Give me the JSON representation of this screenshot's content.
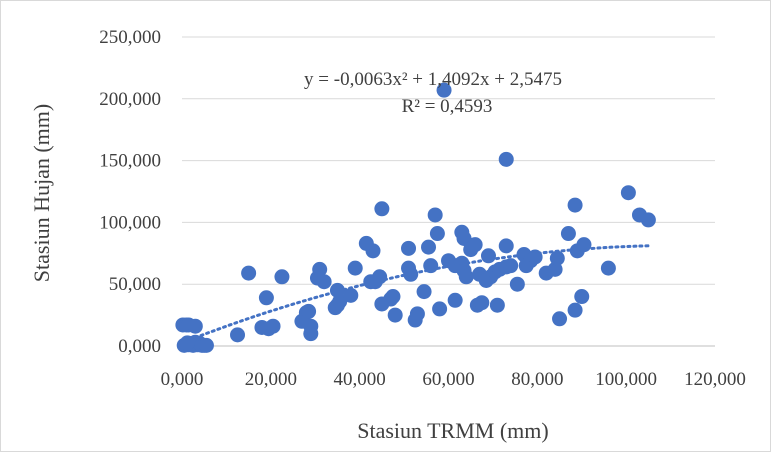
{
  "chart_data": {
    "type": "scatter",
    "title": "",
    "xlabel": "Stasiun TRMM (mm)",
    "ylabel": "Stasiun Hujan (mm)",
    "xlim": [
      0,
      120
    ],
    "ylim": [
      0,
      250
    ],
    "x_ticks": [
      "0,000",
      "20,000",
      "40,000",
      "60,000",
      "80,000",
      "100,000",
      "120,000"
    ],
    "y_ticks": [
      "0,000",
      "50,000",
      "100,000",
      "150,000",
      "200,000",
      "250,000"
    ],
    "x_tick_values": [
      0,
      20,
      40,
      60,
      80,
      100,
      120
    ],
    "y_tick_values": [
      0,
      50,
      100,
      150,
      200,
      250
    ],
    "grid": "horizontal",
    "legend": "none",
    "marker_color": "#4472c4",
    "trend_color": "#4472c4",
    "trendline": {
      "type": "polynomial",
      "order": 2,
      "coefficients": [
        -0.0063,
        1.4092,
        2.5475
      ],
      "x_range": [
        0.5,
        105
      ],
      "equation_text": "y = -0,0063x² + 1,4092x + 2,5475",
      "r2_text": "R² = 0,4593"
    },
    "series": [
      {
        "points": [
          [
            0.2,
            17
          ],
          [
            1,
            17
          ],
          [
            1.5,
            17
          ],
          [
            3,
            16
          ],
          [
            0.5,
            0.5
          ],
          [
            1.5,
            1
          ],
          [
            2,
            2
          ],
          [
            2.5,
            0.5
          ],
          [
            3,
            3
          ],
          [
            3.5,
            1
          ],
          [
            4,
            2
          ],
          [
            4.5,
            0.5
          ],
          [
            5,
            0.5
          ],
          [
            5.5,
            0.5
          ],
          [
            1.2,
            2.5
          ],
          [
            12.5,
            9
          ],
          [
            15,
            59
          ],
          [
            18,
            15
          ],
          [
            19,
            39
          ],
          [
            19.5,
            14
          ],
          [
            20.5,
            16
          ],
          [
            22.5,
            56
          ],
          [
            27,
            20
          ],
          [
            28,
            27
          ],
          [
            28.5,
            28
          ],
          [
            29,
            16
          ],
          [
            29,
            10
          ],
          [
            30.5,
            55
          ],
          [
            31,
            62
          ],
          [
            32,
            52
          ],
          [
            34.5,
            31
          ],
          [
            35,
            33
          ],
          [
            35,
            45
          ],
          [
            35.5,
            36
          ],
          [
            38,
            41
          ],
          [
            39,
            63
          ],
          [
            41.5,
            83
          ],
          [
            42.5,
            52
          ],
          [
            43,
            77
          ],
          [
            43.5,
            52
          ],
          [
            44.5,
            56
          ],
          [
            45,
            111
          ],
          [
            45,
            34
          ],
          [
            47,
            38
          ],
          [
            47.5,
            40
          ],
          [
            48,
            25
          ],
          [
            51,
            79
          ],
          [
            51,
            63
          ],
          [
            51.5,
            58
          ],
          [
            52.5,
            21
          ],
          [
            53,
            26
          ],
          [
            54.5,
            44
          ],
          [
            55.5,
            80
          ],
          [
            56,
            65
          ],
          [
            57,
            106
          ],
          [
            57.5,
            91
          ],
          [
            58,
            30
          ],
          [
            59,
            207
          ],
          [
            60,
            69
          ],
          [
            61.5,
            65
          ],
          [
            61.5,
            37
          ],
          [
            63,
            92
          ],
          [
            63,
            67
          ],
          [
            63.5,
            87
          ],
          [
            63.5,
            61
          ],
          [
            64,
            56
          ],
          [
            65,
            78
          ],
          [
            66,
            82
          ],
          [
            66.5,
            33
          ],
          [
            67,
            58
          ],
          [
            67.5,
            35
          ],
          [
            68.5,
            53
          ],
          [
            69,
            73
          ],
          [
            69.5,
            56
          ],
          [
            70.5,
            60
          ],
          [
            71,
            33
          ],
          [
            71.5,
            62
          ],
          [
            73,
            151
          ],
          [
            73,
            81
          ],
          [
            73,
            64
          ],
          [
            74,
            65
          ],
          [
            75.5,
            50
          ],
          [
            77,
            74
          ],
          [
            77.5,
            65
          ],
          [
            78.5,
            69
          ],
          [
            79.5,
            72
          ],
          [
            82,
            59
          ],
          [
            84,
            62
          ],
          [
            84.5,
            71
          ],
          [
            85,
            22
          ],
          [
            87,
            91
          ],
          [
            88.5,
            114
          ],
          [
            88.5,
            29
          ],
          [
            89,
            77
          ],
          [
            90,
            40
          ],
          [
            90.5,
            82
          ],
          [
            96,
            63
          ],
          [
            100.5,
            124
          ],
          [
            103,
            106
          ],
          [
            105,
            102
          ]
        ]
      }
    ]
  }
}
